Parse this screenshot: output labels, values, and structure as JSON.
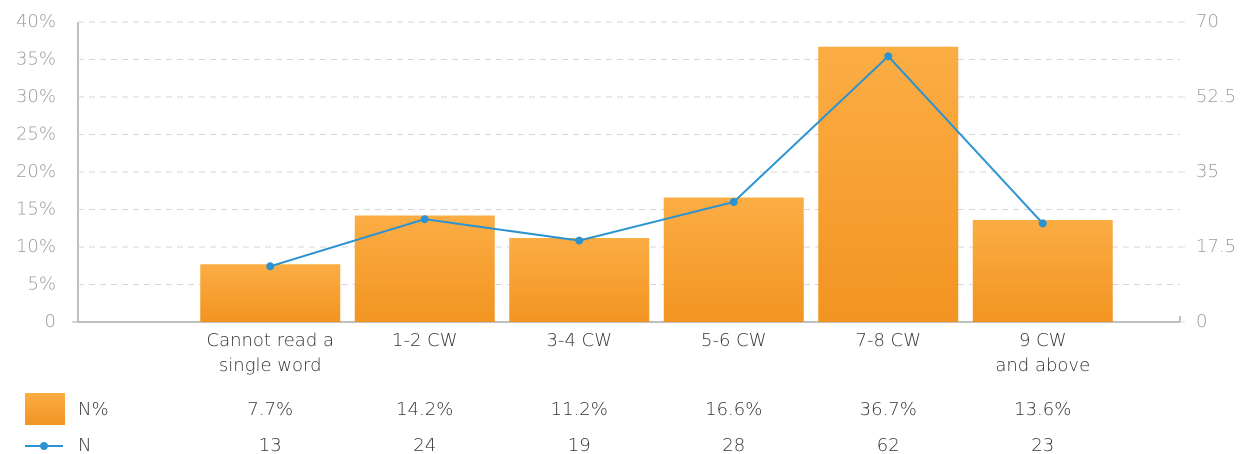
{
  "chart_data": {
    "type": "bar_line",
    "categories": [
      "Cannot read a\nsingle word",
      "1-2 CW",
      "3-4 CW",
      "5-6 CW",
      "7-8 CW",
      "9 CW\nand above"
    ],
    "series": [
      {
        "name": "N%",
        "color": "#f39a2a",
        "values": [
          7.7,
          14.2,
          11.2,
          16.6,
          36.7,
          13.6
        ],
        "value_labels": [
          "7.7%",
          "14.2%",
          "11.2%",
          "16.6%",
          "36.7%",
          "13.6%"
        ]
      },
      {
        "name": "N",
        "color": "#2b93d1",
        "axis": "y2",
        "values": [
          13,
          24,
          19,
          28,
          62,
          23
        ]
      }
    ],
    "ylim": [
      0,
      40
    ],
    "yticks": [
      0,
      {
        "value": 5,
        "label": "5%"
      },
      {
        "value": 10,
        "label": "10%"
      },
      {
        "value": 15,
        "label": "15%"
      },
      {
        "value": 20,
        "label": "20%"
      },
      {
        "value": 25,
        "label": "25%"
      },
      {
        "value": 30,
        "label": "30%"
      },
      {
        "value": 35,
        "label": "35%"
      },
      {
        "value": 40,
        "label": "40%"
      }
    ],
    "y2lim": [
      0,
      70
    ],
    "y2ticks": [
      0,
      17.5,
      35,
      52.5,
      70
    ],
    "grid": true
  }
}
